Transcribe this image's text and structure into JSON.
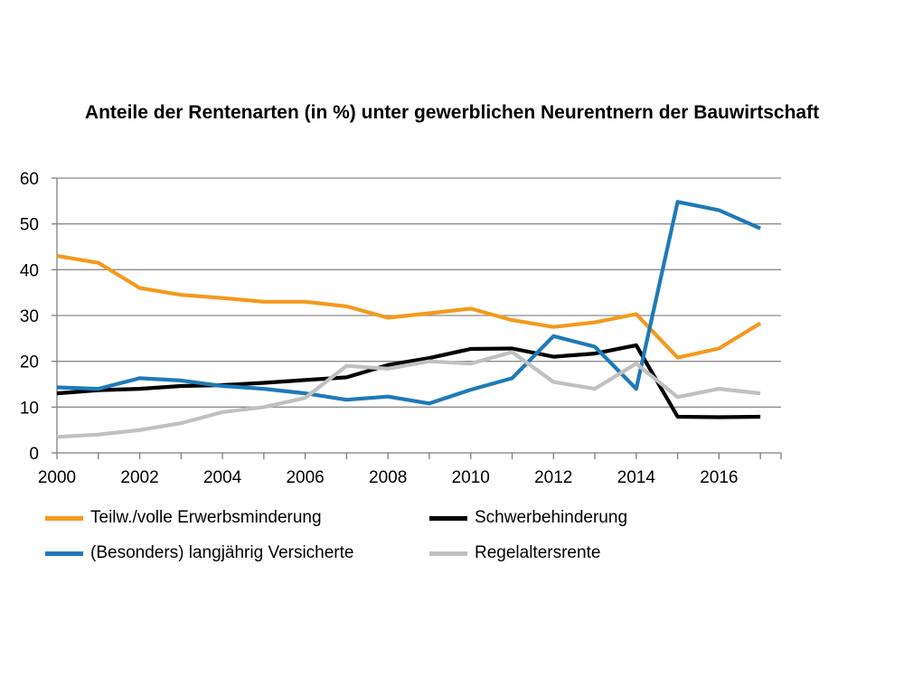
{
  "chart_data": {
    "type": "line",
    "title": "Anteile der Rentenarten (in %) unter gewerblichen Neurentnern der Bauwirtschaft",
    "xlabel": "",
    "ylabel": "",
    "xlim": [
      2000,
      2017.5
    ],
    "ylim": [
      0,
      60
    ],
    "x_ticks": [
      "2000",
      "2002",
      "2004",
      "2006",
      "2008",
      "2010",
      "2012",
      "2014",
      "2016"
    ],
    "y_ticks": [
      "0",
      "10",
      "20",
      "30",
      "40",
      "50",
      "60"
    ],
    "grid": "horizontal",
    "legend_position": "bottom",
    "x": [
      2000,
      2001,
      2002,
      2003,
      2004,
      2005,
      2006,
      2007,
      2008,
      2009,
      2010,
      2011,
      2012,
      2013,
      2014,
      2015,
      2016,
      2017
    ],
    "series": [
      {
        "name": "Teilw./volle Erwerbsminderung",
        "color": "#f39a1e",
        "values": [
          43,
          41.5,
          36,
          34.5,
          33.8,
          33,
          33,
          32,
          29.5,
          30.5,
          31.5,
          29,
          27.5,
          28.5,
          30.3,
          20.8,
          22.8,
          28.3
        ]
      },
      {
        "name": "Schwerbehinderung",
        "color": "#000000",
        "values": [
          13,
          13.7,
          14,
          14.6,
          14.8,
          15.3,
          15.9,
          16.5,
          19.2,
          20.7,
          22.7,
          22.8,
          21,
          21.7,
          23.5,
          7.9,
          7.8,
          7.9
        ]
      },
      {
        "name": "(Besonders) langjährig Versicherte",
        "color": "#1f7ab8",
        "values": [
          14.3,
          14,
          16.3,
          15.8,
          14.6,
          14,
          13,
          11.6,
          12.3,
          10.8,
          13.8,
          16.3,
          25.5,
          23.2,
          14,
          54.8,
          53,
          49
        ]
      },
      {
        "name": "Regelaltersrente",
        "color": "#c0c0c0",
        "values": [
          3.5,
          4,
          5,
          6.5,
          8.9,
          10,
          12,
          19,
          18.4,
          20,
          19.5,
          22,
          15.5,
          14,
          19.5,
          12.2,
          14,
          13
        ]
      }
    ]
  }
}
